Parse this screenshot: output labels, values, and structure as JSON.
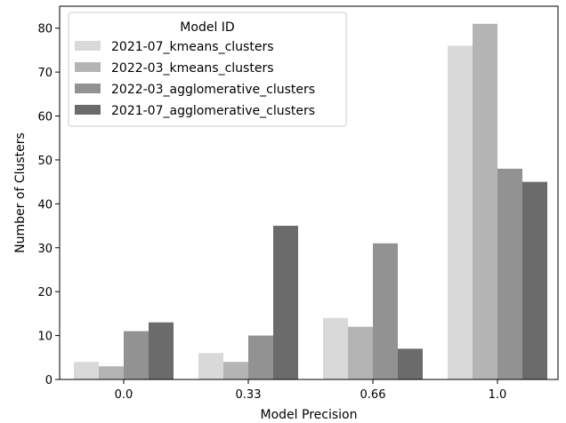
{
  "chart_data": {
    "type": "bar",
    "categories": [
      "0.0",
      "0.33",
      "0.66",
      "1.0"
    ],
    "series": [
      {
        "name": "2021-07_kmeans_clusters",
        "values": [
          4,
          6,
          14,
          76
        ],
        "color": "#d9d9d9"
      },
      {
        "name": "2022-03_kmeans_clusters",
        "values": [
          3,
          4,
          12,
          81
        ],
        "color": "#b4b4b4"
      },
      {
        "name": "2022-03_agglomerative_clusters",
        "values": [
          11,
          10,
          31,
          48
        ],
        "color": "#929292"
      },
      {
        "name": "2021-07_agglomerative_clusters",
        "values": [
          13,
          35,
          7,
          45
        ],
        "color": "#6b6b6b"
      }
    ],
    "title": "",
    "xlabel": "Model Precision",
    "ylabel": "Number of Clusters",
    "ylim": [
      0,
      85
    ],
    "yticks": [
      0,
      10,
      20,
      30,
      40,
      50,
      60,
      70,
      80
    ],
    "grid": false,
    "legend": {
      "title": "Model ID",
      "position": "top-left"
    }
  }
}
